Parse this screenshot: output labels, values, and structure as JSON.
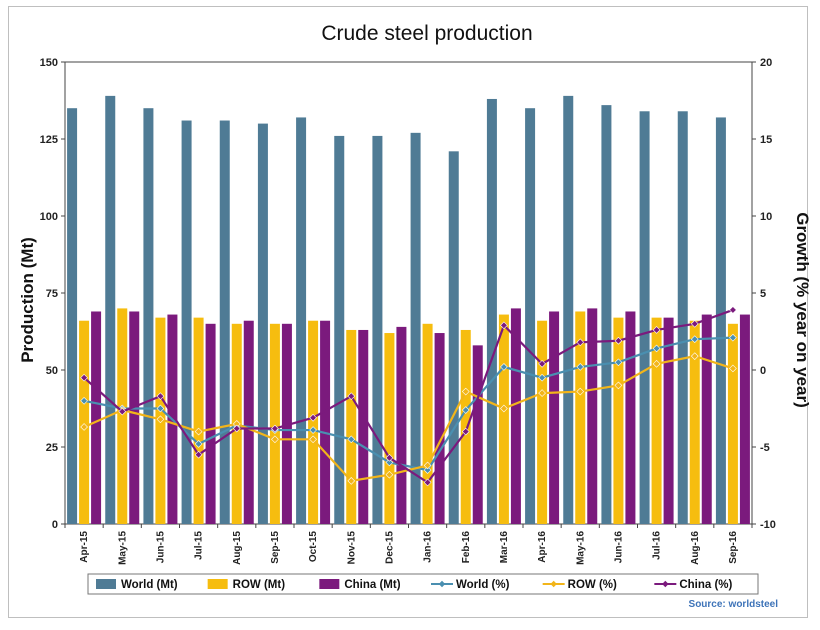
{
  "chart_data": {
    "type": "bar",
    "title": "Crude steel production",
    "ylabel": "Production (Mt)",
    "y2label": "Growth (% year on year)",
    "ylim": [
      0,
      150
    ],
    "yticks": [
      0,
      25,
      50,
      75,
      100,
      125,
      150
    ],
    "y2lim": [
      -10,
      20
    ],
    "y2ticks": [
      -10,
      -5,
      0,
      5,
      10,
      15,
      20
    ],
    "categories": [
      "Apr-15",
      "May-15",
      "Jun-15",
      "Jul-15",
      "Aug-15",
      "Sep-15",
      "Oct-15",
      "Nov-15",
      "Dec-15",
      "Jan-16",
      "Feb-16",
      "Mar-16",
      "Apr-16",
      "May-16",
      "Jun-16",
      "Jul-16",
      "Aug-16",
      "Sep-16"
    ],
    "bar_series": [
      {
        "name": "World (Mt)",
        "color": "#4f7b95",
        "values": [
          135,
          139,
          135,
          131,
          131,
          130,
          132,
          126,
          126,
          127,
          121,
          138,
          135,
          139,
          136,
          134,
          134,
          132
        ]
      },
      {
        "name": "ROW (Mt)",
        "color": "#f6bd0f",
        "values": [
          66,
          70,
          67,
          67,
          65,
          65,
          66,
          63,
          62,
          65,
          63,
          68,
          66,
          69,
          67,
          67,
          66,
          65
        ]
      },
      {
        "name": "China (Mt)",
        "color": "#7b1a7d",
        "values": [
          69,
          69,
          68,
          65,
          66,
          65,
          66,
          63,
          64,
          62,
          58,
          70,
          69,
          70,
          69,
          67,
          68,
          68
        ]
      }
    ],
    "line_series": [
      {
        "name": "World (%)",
        "color": "#4a8fb0",
        "marker": "diamond",
        "values": [
          -2.0,
          -2.5,
          -2.5,
          -4.8,
          -3.6,
          -3.9,
          -3.9,
          -4.5,
          -6.0,
          -6.5,
          -2.6,
          0.2,
          -0.5,
          0.2,
          0.5,
          1.4,
          2.0,
          2.1
        ]
      },
      {
        "name": "ROW (%)",
        "color": "#f2b51a",
        "marker": "diamond",
        "values": [
          -3.7,
          -2.6,
          -3.2,
          -4.0,
          -3.5,
          -4.5,
          -4.5,
          -7.2,
          -6.8,
          -6.2,
          -1.4,
          -2.5,
          -1.5,
          -1.4,
          -1.0,
          0.4,
          0.9,
          0.1
        ]
      },
      {
        "name": "China (%)",
        "color": "#7b1a7d",
        "marker": "diamond",
        "values": [
          -0.5,
          -2.7,
          -1.7,
          -5.5,
          -3.8,
          -3.8,
          -3.1,
          -1.7,
          -5.7,
          -7.3,
          -4.0,
          2.9,
          0.4,
          1.8,
          1.9,
          2.6,
          3.0,
          3.9
        ]
      }
    ],
    "legend_position": "bottom",
    "grid": false,
    "source": "Source: worldsteel"
  }
}
